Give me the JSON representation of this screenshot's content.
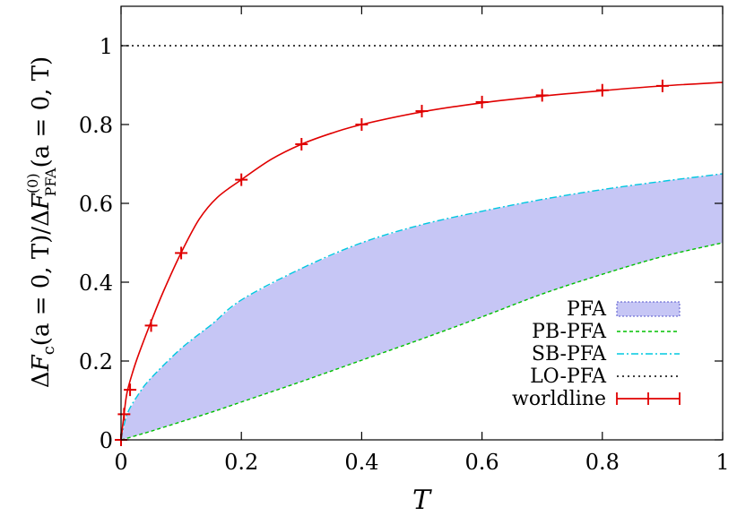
{
  "chart_data": {
    "type": "line",
    "xlabel": "T",
    "ylabel": {
      "delta1": "Δ",
      "F1": "F",
      "sub1": "c",
      "mid": "(a = 0, T)/Δ",
      "F2": "F",
      "sup2": "(0)",
      "sub2": "PFA",
      "end": "(a = 0, T)"
    },
    "xlim": [
      0,
      1
    ],
    "ylim": [
      0,
      1.1
    ],
    "x_ticks": [
      "0",
      "0.2",
      "0.4",
      "0.6",
      "0.8",
      "1"
    ],
    "y_ticks": [
      "0",
      "0.2",
      "0.4",
      "0.6",
      "0.8",
      "1"
    ],
    "x_tick_values": [
      0,
      0.2,
      0.4,
      0.6,
      0.8,
      1
    ],
    "y_tick_values": [
      0,
      0.2,
      0.4,
      0.6,
      0.8,
      1
    ],
    "grid": false,
    "legend_position": "bottom-right",
    "series": [
      {
        "name": "PFA",
        "kind": "band",
        "color": "#c6c6f5",
        "x": [
          0,
          0.01,
          0.03,
          0.05,
          0.1,
          0.15,
          0.2,
          0.3,
          0.4,
          0.5,
          0.6,
          0.7,
          0.8,
          0.9,
          1.0
        ],
        "lower": [
          0,
          0.004,
          0.013,
          0.022,
          0.046,
          0.07,
          0.096,
          0.148,
          0.202,
          0.256,
          0.312,
          0.37,
          0.42,
          0.465,
          0.5
        ],
        "upper": [
          0,
          0.065,
          0.118,
          0.157,
          0.232,
          0.292,
          0.355,
          0.435,
          0.5,
          0.546,
          0.58,
          0.61,
          0.635,
          0.656,
          0.675
        ]
      },
      {
        "name": "PB-PFA",
        "kind": "dashed",
        "color": "#00c000",
        "x": [
          0,
          0.01,
          0.03,
          0.05,
          0.1,
          0.15,
          0.2,
          0.3,
          0.4,
          0.5,
          0.6,
          0.7,
          0.8,
          0.9,
          1.0
        ],
        "values": [
          0,
          0.004,
          0.013,
          0.022,
          0.046,
          0.07,
          0.096,
          0.148,
          0.202,
          0.256,
          0.312,
          0.37,
          0.42,
          0.465,
          0.5
        ]
      },
      {
        "name": "SB-PFA",
        "kind": "dashdot",
        "color": "#00c8e0",
        "x": [
          0,
          0.01,
          0.03,
          0.05,
          0.1,
          0.15,
          0.2,
          0.3,
          0.4,
          0.5,
          0.6,
          0.7,
          0.8,
          0.9,
          1.0
        ],
        "values": [
          0,
          0.065,
          0.118,
          0.157,
          0.232,
          0.292,
          0.355,
          0.435,
          0.5,
          0.546,
          0.58,
          0.61,
          0.635,
          0.656,
          0.675
        ]
      },
      {
        "name": "LO-PFA",
        "kind": "dotted",
        "color": "#000000",
        "x": [
          0,
          1
        ],
        "values": [
          1,
          1
        ]
      },
      {
        "name": "worldline",
        "kind": "line",
        "color": "#e00000",
        "x": [
          0,
          0.005,
          0.01,
          0.02,
          0.03,
          0.05,
          0.07,
          0.1,
          0.13,
          0.16,
          0.2,
          0.25,
          0.3,
          0.35,
          0.4,
          0.5,
          0.6,
          0.7,
          0.8,
          0.9,
          1.0
        ],
        "values": [
          0,
          0.065,
          0.12,
          0.175,
          0.22,
          0.3,
          0.375,
          0.475,
          0.56,
          0.615,
          0.66,
          0.712,
          0.75,
          0.778,
          0.8,
          0.832,
          0.855,
          0.872,
          0.886,
          0.898,
          0.907
        ]
      },
      {
        "name": "worldline-points",
        "kind": "errorpoints",
        "color": "#e00000",
        "x": [
          0,
          0.005,
          0.015,
          0.05,
          0.1,
          0.2,
          0.3,
          0.4,
          0.5,
          0.6,
          0.7,
          0.8,
          0.9
        ],
        "values": [
          0,
          0.065,
          0.127,
          0.29,
          0.474,
          0.66,
          0.75,
          0.8,
          0.834,
          0.857,
          0.874,
          0.887,
          0.898
        ]
      }
    ],
    "legend": [
      {
        "label": "PFA",
        "kind": "band"
      },
      {
        "label": "PB-PFA",
        "kind": "dashed"
      },
      {
        "label": "SB-PFA",
        "kind": "dashdot"
      },
      {
        "label": "LO-PFA",
        "kind": "dotted"
      },
      {
        "label": "worldline",
        "kind": "errorbar"
      }
    ]
  }
}
